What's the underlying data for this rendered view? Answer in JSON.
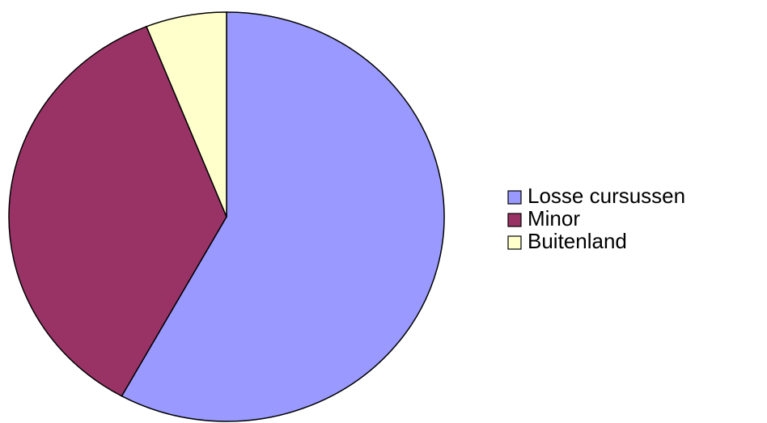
{
  "chart_data": {
    "type": "pie",
    "categories": [
      "Losse cursussen",
      "Minor",
      "Buitenland"
    ],
    "values": [
      58,
      36,
      6
    ],
    "colors": [
      "#9999ff",
      "#993366",
      "#ffffcc"
    ],
    "legend": "right"
  }
}
